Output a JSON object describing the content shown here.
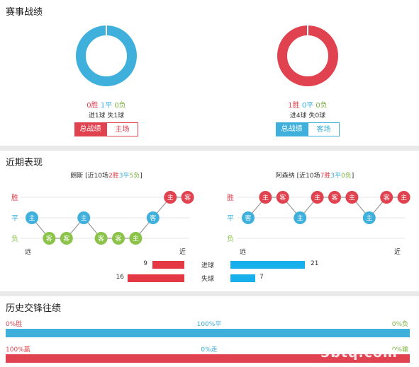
{
  "sections": {
    "record_title": "赛事战绩",
    "recent_title": "近期表现",
    "history_title": "历史交锋往绩"
  },
  "record": {
    "left": {
      "wins": "0胜",
      "draws": "1平",
      "losses": "0负",
      "goals": "进1球",
      "conceded": "失1球",
      "tab_active": "总战绩",
      "tab_inactive": "主场",
      "ring_color": "#3fb0dc"
    },
    "right": {
      "wins": "1胜",
      "draws": "0平",
      "losses": "0负",
      "goals": "进4球",
      "conceded": "失0球",
      "tab_active": "总战绩",
      "tab_inactive": "客场",
      "ring_color": "#e0424f"
    }
  },
  "recent": {
    "row_labels": {
      "win": "胜",
      "draw": "平",
      "loss": "负"
    },
    "far_label": "远",
    "near_label": "近",
    "left": {
      "team": "朗斯",
      "summary_prefix": " [近10场",
      "wins": "2胜",
      "draws": "3平",
      "losses": "5负",
      "summary_suffix": "]",
      "results": [
        "D",
        "L",
        "L",
        "D",
        "L",
        "L",
        "L",
        "D",
        "W",
        "W"
      ],
      "venues": [
        "主",
        "客",
        "客",
        "主",
        "客",
        "客",
        "主",
        "客",
        "主",
        "客"
      ]
    },
    "right": {
      "team": "阿森纳",
      "summary_prefix": " [近10场",
      "wins": "7胜",
      "draws": "3平",
      "losses": "0负",
      "summary_suffix": "]",
      "results": [
        "D",
        "W",
        "W",
        "D",
        "W",
        "W",
        "W",
        "D",
        "W",
        "W"
      ],
      "venues": [
        "客",
        "主",
        "客",
        "主",
        "主",
        "客",
        "主",
        "主",
        "客",
        "主"
      ]
    },
    "goals": {
      "scored_label": "进球",
      "conceded_label": "失球",
      "left_scored": 9,
      "right_scored": 21,
      "left_conceded": 16,
      "right_conceded": 7
    }
  },
  "history": {
    "row1": {
      "left": "0%胜",
      "mid": "100%平",
      "right": "0%负",
      "color": "#3fb0dc"
    },
    "row2": {
      "left": "100%赢",
      "mid": "0%走",
      "right": "0%输",
      "color": "#e0424f"
    },
    "watermark": "5btq.com"
  }
}
